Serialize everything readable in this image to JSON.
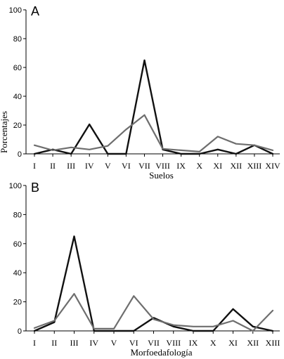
{
  "chart_data": [
    {
      "type": "line",
      "panel_label": "A",
      "categories": [
        "I",
        "II",
        "III",
        "IV",
        "V",
        "VI",
        "VII",
        "VIII",
        "IX",
        "X",
        "XI",
        "XII",
        "XIII",
        "XIV"
      ],
      "xlabel": "Suelos",
      "ylabel": "Porcentajes",
      "ylim": [
        0,
        100
      ],
      "yticks": [
        0,
        20,
        40,
        60,
        80,
        100
      ],
      "grid": false,
      "series": [
        {
          "color": "#111111",
          "values": [
            0,
            3,
            0,
            20.5,
            0,
            0,
            65,
            3,
            0,
            0,
            3,
            0,
            6,
            0
          ]
        },
        {
          "color": "#6e6e6e",
          "values": [
            6,
            2.5,
            4.5,
            3,
            5.5,
            17,
            27,
            3.5,
            2.5,
            1.5,
            12,
            7,
            6,
            2.5
          ]
        }
      ]
    },
    {
      "type": "line",
      "panel_label": "B",
      "categories": [
        "I",
        "II",
        "III",
        "IV",
        "V",
        "VI",
        "VII",
        "VIII",
        "IX",
        "X",
        "XI",
        "XII",
        "XIII"
      ],
      "xlabel": "Morfoedafología",
      "ylabel": "",
      "ylim": [
        0,
        100
      ],
      "yticks": [
        0,
        20,
        40,
        60,
        80,
        100
      ],
      "grid": false,
      "series": [
        {
          "color": "#111111",
          "values": [
            0,
            6,
            65,
            0,
            0,
            0,
            9,
            3,
            0,
            0,
            15,
            3,
            0
          ]
        },
        {
          "color": "#6e6e6e",
          "values": [
            2,
            7,
            25.5,
            1.5,
            1.5,
            24,
            8,
            4,
            3,
            3,
            7,
            0,
            14
          ]
        }
      ]
    }
  ]
}
